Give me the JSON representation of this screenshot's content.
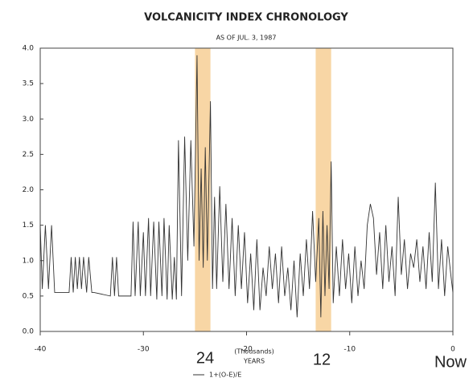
{
  "chart_data": {
    "type": "line",
    "title": "VOLCANICITY INDEX CHRONOLOGY",
    "subtitle": "AS OF JUL. 3, 1987",
    "xlabel_note": "(Thousands)",
    "xlabel": "YEARS",
    "annotations": [
      "24",
      "12",
      "Now"
    ],
    "band_color": "#f7cf95",
    "bands": [
      [
        -25,
        -23.5
      ],
      [
        -13.3,
        -11.8
      ]
    ],
    "xlim": [
      -40,
      0
    ],
    "xticks": [
      -40,
      -30,
      -20,
      -10,
      0
    ],
    "ylim": [
      0,
      4
    ],
    "yticks": [
      {
        "value": 0,
        "label": "0.0"
      },
      {
        "value": 0.5,
        "label": "0.5"
      },
      {
        "value": 1,
        "label": "1.0"
      },
      {
        "value": 1.5,
        "label": "1.5"
      },
      {
        "value": 2,
        "label": "2.0"
      },
      {
        "value": 2.5,
        "label": "2.5"
      },
      {
        "value": 3,
        "label": "3.0"
      },
      {
        "value": 3.5,
        "label": "3.5"
      },
      {
        "value": 4,
        "label": "4.0"
      }
    ],
    "series": [
      {
        "name": "1+(O-E)/E",
        "color": "#333333",
        "x": [
          -40,
          -39.8,
          -39.5,
          -39.2,
          -38.9,
          -38.6,
          -37.2,
          -37,
          -36.8,
          -36.6,
          -36.4,
          -36.2,
          -36,
          -35.8,
          -35.5,
          -35.3,
          -35,
          -34.8,
          -33.2,
          -33,
          -32.8,
          -32.6,
          -32.4,
          -31.2,
          -31,
          -30.8,
          -30.5,
          -30.3,
          -30,
          -29.8,
          -29.5,
          -29.3,
          -29,
          -28.7,
          -28.5,
          -28.2,
          -28,
          -27.7,
          -27.5,
          -27.2,
          -27,
          -26.8,
          -26.6,
          -26.3,
          -26,
          -25.7,
          -25.4,
          -25.1,
          -24.8,
          -24.6,
          -24.4,
          -24.2,
          -24,
          -23.8,
          -23.5,
          -23.3,
          -23.1,
          -22.9,
          -22.6,
          -22.3,
          -22,
          -21.7,
          -21.4,
          -21.1,
          -20.8,
          -20.5,
          -20.2,
          -19.9,
          -19.6,
          -19.3,
          -19,
          -18.7,
          -18.4,
          -18.1,
          -17.8,
          -17.5,
          -17.2,
          -16.9,
          -16.6,
          -16.3,
          -16,
          -15.7,
          -15.4,
          -15.1,
          -14.8,
          -14.5,
          -14.2,
          -13.9,
          -13.6,
          -13.3,
          -13,
          -12.8,
          -12.6,
          -12.4,
          -12.2,
          -12,
          -11.8,
          -11.6,
          -11.3,
          -11,
          -10.7,
          -10.4,
          -10.1,
          -9.8,
          -9.5,
          -9.2,
          -8.9,
          -8.6,
          -8.3,
          -8,
          -7.7,
          -7.4,
          -7.1,
          -6.8,
          -6.5,
          -6.2,
          -5.9,
          -5.6,
          -5.3,
          -5,
          -4.7,
          -4.4,
          -4.1,
          -3.8,
          -3.5,
          -3.2,
          -2.9,
          -2.6,
          -2.3,
          -2,
          -1.7,
          -1.4,
          -1.1,
          -0.8,
          -0.5,
          -0.2,
          0
        ],
        "values": [
          1.5,
          0.6,
          1.5,
          0.6,
          1.5,
          0.55,
          0.55,
          1.05,
          0.55,
          1.05,
          0.6,
          1.05,
          0.6,
          1.05,
          0.55,
          1.05,
          0.55,
          0.55,
          0.5,
          1.05,
          0.5,
          1.05,
          0.5,
          0.5,
          1.55,
          0.5,
          1.55,
          0.5,
          1.4,
          0.5,
          1.6,
          0.5,
          1.55,
          0.45,
          1.55,
          0.5,
          1.6,
          0.45,
          1.5,
          0.45,
          1.05,
          0.45,
          2.7,
          0.5,
          2.75,
          1.0,
          2.7,
          1.2,
          3.9,
          1.0,
          2.3,
          0.9,
          2.6,
          1.0,
          3.25,
          0.6,
          1.9,
          0.6,
          2.05,
          0.7,
          1.8,
          0.6,
          1.6,
          0.5,
          1.5,
          0.6,
          1.4,
          0.4,
          1.1,
          0.3,
          1.3,
          0.3,
          0.9,
          0.5,
          1.2,
          0.6,
          1.1,
          0.4,
          1.2,
          0.5,
          0.9,
          0.3,
          1.0,
          0.2,
          1.1,
          0.5,
          1.3,
          0.6,
          1.7,
          0.7,
          1.6,
          0.2,
          1.7,
          0.5,
          1.5,
          0.6,
          2.4,
          0.4,
          1.2,
          0.5,
          1.3,
          0.6,
          1.1,
          0.4,
          1.2,
          0.5,
          1.0,
          0.6,
          1.5,
          1.8,
          1.6,
          0.8,
          1.4,
          0.6,
          1.5,
          0.7,
          1.2,
          0.5,
          1.9,
          0.8,
          1.3,
          0.6,
          1.1,
          0.9,
          1.3,
          0.7,
          1.2,
          0.6,
          1.4,
          0.7,
          2.1,
          0.6,
          1.3,
          0.5,
          1.2,
          0.8,
          0.55
        ]
      }
    ]
  }
}
